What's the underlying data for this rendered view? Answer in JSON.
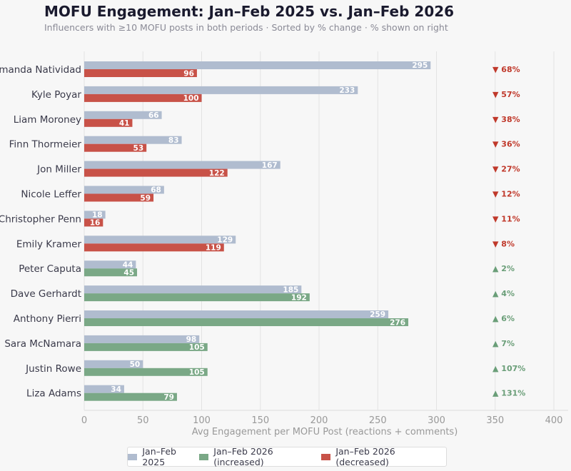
{
  "chart_data": {
    "type": "bar",
    "orientation": "horizontal",
    "title": "MOFU Engagement: Jan–Feb 2025 vs. Jan–Feb 2026",
    "subtitle": "Influencers with ≥10 MOFU posts in both periods  ·  Sorted by % change  ·  % shown on right",
    "xlabel": "Avg Engagement per MOFU Post (reactions + comments)",
    "ylabel": "",
    "xlim": [
      0,
      400
    ],
    "xticks": [
      0,
      50,
      100,
      150,
      200,
      250,
      300,
      350,
      400
    ],
    "grid": true,
    "legend_position": "bottom",
    "categories": [
      "Amanda Natividad",
      "Kyle Poyar",
      "Liam Moroney",
      "Finn Thormeier",
      "Jon Miller",
      "Nicole Leffer",
      "Christopher Penn",
      "Emily Kramer",
      "Peter Caputa",
      "Dave Gerhardt",
      "Anthony Pierri",
      "Sara McNamara",
      "Justin Rowe",
      "Liza Adams"
    ],
    "series": [
      {
        "name": "Jan–Feb 2025",
        "color": "#b0bccf",
        "values": [
          295,
          233,
          66,
          83,
          167,
          68,
          18,
          129,
          44,
          185,
          259,
          98,
          50,
          34
        ]
      },
      {
        "name": "Jan–Feb 2026",
        "values": [
          96,
          100,
          41,
          53,
          122,
          59,
          16,
          119,
          45,
          192,
          276,
          105,
          105,
          79
        ]
      }
    ],
    "legend": [
      {
        "label": "Jan–Feb 2025",
        "color": "#b0bccf"
      },
      {
        "label": "Jan–Feb 2026 (increased)",
        "color": "#7aa886"
      },
      {
        "label": "Jan–Feb 2026 (decreased)",
        "color": "#c85248"
      }
    ],
    "pct_change": [
      "▼ 68%",
      "▼ 57%",
      "▼ 38%",
      "▼ 36%",
      "▼ 27%",
      "▼ 12%",
      "▼ 11%",
      "▼ 8%",
      "▲ 2%",
      "▲ 4%",
      "▲ 6%",
      "▲ 7%",
      "▲ 107%",
      "▲ 131%"
    ],
    "colors": {
      "increase": "#7aa886",
      "decrease": "#c85248",
      "pct_increase_text": "#6a9e78",
      "pct_decrease_text": "#c0392b"
    }
  }
}
